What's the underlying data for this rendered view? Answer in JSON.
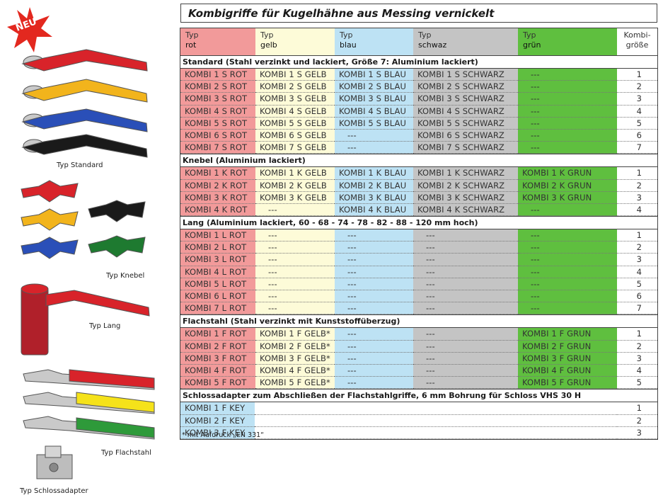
{
  "title": "Kombigriffe für Kugelhähne aus Messing vernickelt",
  "badge": "NEU",
  "captions": {
    "standard": "Typ Standard",
    "knebel": "Typ Knebel",
    "lang": "Typ Lang",
    "flachstahl": "Typ Flachstahl",
    "schlossadapter": "Typ Schlossadapter"
  },
  "header": {
    "col1": {
      "l1": "Typ",
      "l2": "rot"
    },
    "col2": {
      "l1": "Typ",
      "l2": "gelb"
    },
    "col3": {
      "l1": "Typ",
      "l2": "blau"
    },
    "col4": {
      "l1": "Typ",
      "l2": "schwaz"
    },
    "col5": {
      "l1": "Typ",
      "l2": "grün"
    },
    "col6": {
      "l1": "Kombi-",
      "l2": "größe"
    }
  },
  "colors": {
    "rot": "#f29a9a",
    "gelb": "#fdfbd8",
    "blau": "#bde2f4",
    "schwarz": "#c4c4c4",
    "gruen": "#5fbf3f"
  },
  "sections": [
    {
      "title": "Standard (Stahl verzinkt und lackiert, Größe 7: Aluminium lackiert)",
      "rows": [
        [
          "KOMBI 1 S ROT",
          "KOMBI 1 S GELB",
          "KOMBI 1 S BLAU",
          "KOMBI 1 S SCHWARZ",
          "---",
          "1"
        ],
        [
          "KOMBI 2 S ROT",
          "KOMBI 2 S GELB",
          "KOMBI 2 S BLAU",
          "KOMBI 2 S SCHWARZ",
          "---",
          "2"
        ],
        [
          "KOMBI 3 S ROT",
          "KOMBI 3 S GELB",
          "KOMBI 3 S BLAU",
          "KOMBI 3 S SCHWARZ",
          "---",
          "3"
        ],
        [
          "KOMBI 4 S ROT",
          "KOMBI 4 S GELB",
          "KOMBI 4 S BLAU",
          "KOMBI 4 S SCHWARZ",
          "---",
          "4"
        ],
        [
          "KOMBI 5 S ROT",
          "KOMBI 5 S GELB",
          "KOMBI 5 S BLAU",
          "KOMBI 5 S SCHWARZ",
          "---",
          "5"
        ],
        [
          "KOMBI 6 S ROT",
          "KOMBI 6 S GELB",
          "---",
          "KOMBI 6 S SCHWARZ",
          "---",
          "6"
        ],
        [
          "KOMBI 7 S ROT",
          "KOMBI 7 S GELB",
          "---",
          "KOMBI 7 S SCHWARZ",
          "---",
          "7"
        ]
      ]
    },
    {
      "title": "Knebel (Aluminium lackiert)",
      "rows": [
        [
          "KOMBI 1 K ROT",
          "KOMBI 1 K GELB",
          "KOMBI 1 K BLAU",
          "KOMBI 1 K SCHWARZ",
          "KOMBI 1 K GRUN",
          "1"
        ],
        [
          "KOMBI 2 K ROT",
          "KOMBI 2 K GELB",
          "KOMBI 2 K BLAU",
          "KOMBI 2 K SCHWARZ",
          "KOMBI 2 K GRUN",
          "2"
        ],
        [
          "KOMBI 3 K ROT",
          "KOMBI 3 K GELB",
          "KOMBI 3 K BLAU",
          "KOMBI 3 K SCHWARZ",
          "KOMBI 3 K GRUN",
          "3"
        ],
        [
          "KOMBI 4 K ROT",
          "---",
          "KOMBI 4 K BLAU",
          "KOMBI 4 K SCHWARZ",
          "---",
          "4"
        ]
      ]
    },
    {
      "title": "Lang (Aluminium lackiert, 60 - 68 - 74 - 78 - 82 - 88 - 120 mm hoch)",
      "rows": [
        [
          "KOMBI 1 L ROT",
          "---",
          "---",
          "---",
          "---",
          "1"
        ],
        [
          "KOMBI 2 L ROT",
          "---",
          "---",
          "---",
          "---",
          "2"
        ],
        [
          "KOMBI 3 L ROT",
          "---",
          "---",
          "---",
          "---",
          "3"
        ],
        [
          "KOMBI 4 L ROT",
          "---",
          "---",
          "---",
          "---",
          "4"
        ],
        [
          "KOMBI 5 L ROT",
          "---",
          "---",
          "---",
          "---",
          "5"
        ],
        [
          "KOMBI 6 L ROT",
          "---",
          "---",
          "---",
          "---",
          "6"
        ],
        [
          "KOMBI 7 L ROT",
          "---",
          "---",
          "---",
          "---",
          "7"
        ]
      ]
    },
    {
      "title": "Flachstahl (Stahl verzinkt mit Kunststoffüberzug)",
      "rows": [
        [
          "KOMBI 1 F ROT",
          "KOMBI 1 F GELB*",
          "---",
          "---",
          "KOMBI 1 F GRUN",
          "1"
        ],
        [
          "KOMBI 2 F ROT",
          "KOMBI 2 F GELB*",
          "---",
          "---",
          "KOMBI 2 F GRUN",
          "2"
        ],
        [
          "KOMBI 3 F ROT",
          "KOMBI 3 F GELB*",
          "---",
          "---",
          "KOMBI 3 F GRUN",
          "3"
        ],
        [
          "KOMBI 4 F ROT",
          "KOMBI 4 F GELB*",
          "---",
          "---",
          "KOMBI 4 F GRUN",
          "4"
        ],
        [
          "KOMBI 5 F ROT",
          "KOMBI 5 F GELB*",
          "---",
          "---",
          "KOMBI 5 F GRUN",
          "5"
        ]
      ]
    },
    {
      "title": "Schlossadapter zum Abschließen der Flachstahlgriffe, 6 mm Bohrung für Schloss VHS 30 H",
      "rows": [
        [
          "KOMBI 1 F KEY",
          "1"
        ],
        [
          "KOMBI 2 F KEY",
          "2"
        ],
        [
          "KOMBI 3 F KEY",
          "3"
        ]
      ]
    }
  ],
  "footnote": "* mit Aufdruck „EN 331“"
}
